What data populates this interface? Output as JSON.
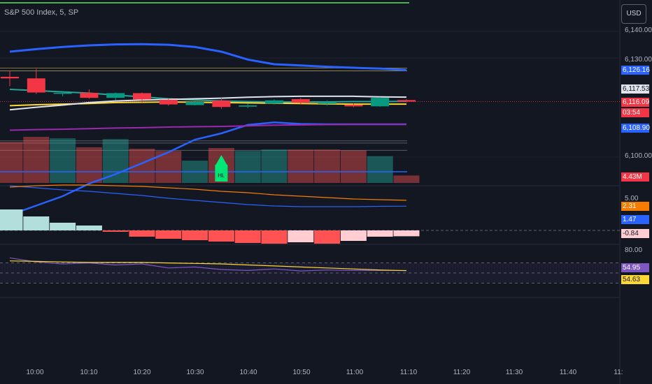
{
  "header": {
    "title": "S&P 500 Index, 5, SP",
    "currency_button": "USD"
  },
  "price_axis": {
    "ticks": [
      "6,140.00",
      "6,130.00",
      "6,100.00"
    ],
    "tags": {
      "upper_band": {
        "text": "6,126.16",
        "bg": "#2962ff",
        "fg": "#ffffff"
      },
      "white_ma": {
        "text": "6,117.53",
        "bg": "#e0e3eb",
        "fg": "#131722"
      },
      "last_price": {
        "text": "6,116.09",
        "bg": "#f23645",
        "fg": "#ffffff"
      },
      "countdown": {
        "text": "03:54",
        "bg": "#f23645",
        "fg": "#ffffff"
      },
      "lower_band": {
        "text": "6,108.90",
        "bg": "#2962ff",
        "fg": "#ffffff"
      },
      "volume": {
        "text": "4.43M",
        "bg": "#f23645",
        "fg": "#ffffff"
      }
    }
  },
  "macd_axis": {
    "tick": "5.00",
    "tags": {
      "signal": {
        "text": "2.31",
        "bg": "#f57c00",
        "fg": "#ffffff"
      },
      "macd": {
        "text": "1.47",
        "bg": "#2962ff",
        "fg": "#ffffff"
      },
      "histogram": {
        "text": "-0.84",
        "bg": "#ffcdd2",
        "fg": "#131722"
      }
    }
  },
  "rsi_axis": {
    "tick": "80.00",
    "tags": {
      "rsi": {
        "text": "54.95",
        "bg": "#7e57c2",
        "fg": "#ffffff"
      },
      "rsi_ma": {
        "text": "54.63",
        "bg": "#fdd835",
        "fg": "#131722"
      }
    }
  },
  "marker": {
    "label": "HL",
    "color": "#00e676"
  },
  "chart_data": {
    "type": "candlestick",
    "time_labels": [
      "10:00",
      "10:10",
      "10:20",
      "10:30",
      "10:40",
      "10:50",
      "11:00",
      "11:10",
      "11:20",
      "11:30",
      "11:40",
      "11:"
    ],
    "candles": [
      {
        "o": 6124.0,
        "h": 6126.0,
        "l": 6121.0,
        "c": 6123.5,
        "dir": "down"
      },
      {
        "o": 6123.5,
        "h": 6126.5,
        "l": 6118.5,
        "c": 6119.0,
        "dir": "down"
      },
      {
        "o": 6118.6,
        "h": 6119.5,
        "l": 6117.8,
        "c": 6118.9,
        "dir": "up"
      },
      {
        "o": 6118.9,
        "h": 6120.0,
        "l": 6117.0,
        "c": 6117.3,
        "dir": "down"
      },
      {
        "o": 6117.3,
        "h": 6119.0,
        "l": 6116.5,
        "c": 6118.8,
        "dir": "up"
      },
      {
        "o": 6118.8,
        "h": 6119.0,
        "l": 6115.8,
        "c": 6116.8,
        "dir": "down"
      },
      {
        "o": 6116.7,
        "h": 6117.0,
        "l": 6114.8,
        "c": 6115.2,
        "dir": "down"
      },
      {
        "o": 6115.0,
        "h": 6116.8,
        "l": 6114.9,
        "c": 6116.0,
        "dir": "up"
      },
      {
        "o": 6116.4,
        "h": 6117.3,
        "l": 6113.8,
        "c": 6114.4,
        "dir": "down"
      },
      {
        "o": 6114.5,
        "h": 6115.5,
        "l": 6114.0,
        "c": 6114.9,
        "dir": "up"
      },
      {
        "o": 6115.5,
        "h": 6116.8,
        "l": 6115.2,
        "c": 6116.5,
        "dir": "up"
      },
      {
        "o": 6116.9,
        "h": 6117.3,
        "l": 6115.2,
        "c": 6115.8,
        "dir": "down"
      },
      {
        "o": 6115.4,
        "h": 6116.5,
        "l": 6114.8,
        "c": 6115.9,
        "dir": "up"
      },
      {
        "o": 6115.1,
        "h": 6115.6,
        "l": 6114.3,
        "c": 6114.6,
        "dir": "down"
      },
      {
        "o": 6114.6,
        "h": 6117.5,
        "l": 6114.5,
        "c": 6117.3,
        "dir": "up"
      },
      {
        "o": 6116.6,
        "h": 6116.9,
        "l": 6115.9,
        "c": 6116.09,
        "dir": "down"
      }
    ],
    "volume": {
      "values": [
        5.5,
        6.2,
        6.0,
        4.8,
        5.9,
        4.6,
        4.3,
        3.0,
        4.7,
        4.3,
        4.5,
        4.5,
        4.5,
        4.4,
        3.6,
        1.0
      ],
      "dirs": [
        "down",
        "down",
        "up",
        "down",
        "up",
        "down",
        "down",
        "up",
        "down",
        "up",
        "up",
        "down",
        "down",
        "down",
        "up",
        "down"
      ]
    },
    "bands": {
      "upper": [
        6132.0,
        6132.8,
        6133.5,
        6134.0,
        6134.3,
        6134.4,
        6134.2,
        6133.5,
        6132.0,
        6129.5,
        6128.0,
        6127.6,
        6127.2,
        6126.9,
        6126.6,
        6126.16
      ],
      "lower": [
        6080.0,
        6083.0,
        6086.0,
        6090.0,
        6093.0,
        6096.5,
        6100.0,
        6104.0,
        6106.0,
        6108.7,
        6109.5,
        6109.0,
        6108.9,
        6108.9,
        6108.9,
        6108.9
      ]
    },
    "moving_averages": {
      "teal": [
        6120.0,
        6119.6,
        6119.2,
        6118.8,
        6118.2,
        6117.6,
        6117.0,
        6116.6,
        6116.3,
        6116.1,
        6116.0,
        6116.0,
        6116.0,
        6116.1,
        6116.1,
        6116.2
      ],
      "yellow": [
        6114.8,
        6115.1,
        6115.3,
        6115.5,
        6115.8,
        6115.9,
        6116.0,
        6115.9,
        6115.8,
        6115.7,
        6115.6,
        6115.5,
        6115.4,
        6115.3,
        6115.3,
        6115.3
      ],
      "white": [
        6113.5,
        6114.3,
        6115.0,
        6115.8,
        6116.3,
        6116.6,
        6116.8,
        6117.0,
        6117.2,
        6117.5,
        6117.7,
        6117.8,
        6117.8,
        6117.8,
        6117.6,
        6117.53
      ],
      "purple": [
        6107.0,
        6107.2,
        6107.3,
        6107.5,
        6107.7,
        6107.8,
        6108.0,
        6108.1,
        6108.2,
        6108.4,
        6108.6,
        6108.7,
        6108.8,
        6108.9,
        6108.9,
        6108.9
      ]
    },
    "levels": [
      6126.8,
      6125.9,
      6103.6,
      6102.9,
      6100.6
    ],
    "macd": {
      "histogram": [
        3.0,
        2.0,
        1.1,
        0.7,
        -0.2,
        -0.9,
        -1.2,
        -1.4,
        -1.6,
        -1.8,
        -1.9,
        -1.7,
        -1.9,
        -1.5,
        -0.9,
        -0.84
      ],
      "macd_line": [
        4.4,
        4.1,
        3.8,
        3.6,
        3.3,
        3.0,
        2.6,
        2.3,
        2.0,
        1.7,
        1.5,
        1.4,
        1.4,
        1.4,
        1.45,
        1.47
      ],
      "signal_line": [
        4.2,
        4.4,
        4.5,
        4.5,
        4.4,
        4.3,
        4.1,
        3.9,
        3.6,
        3.4,
        3.1,
        2.9,
        2.7,
        2.5,
        2.4,
        2.31
      ],
      "zero_line": 0
    },
    "rsi": {
      "rsi_line": [
        80,
        72,
        68,
        70,
        66,
        68,
        60,
        62,
        57,
        55,
        58,
        54,
        56,
        55,
        55,
        54.95
      ],
      "rsi_ma": [
        74,
        73,
        72,
        71,
        71,
        71,
        70,
        69,
        68,
        66,
        64,
        62,
        60,
        58,
        56,
        54.63
      ],
      "levels": [
        70,
        50,
        30
      ]
    }
  }
}
